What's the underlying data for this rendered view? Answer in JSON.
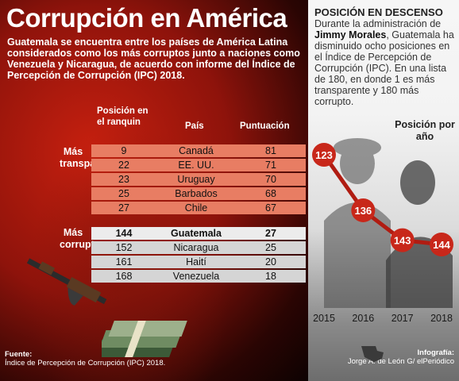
{
  "header": {
    "title": "Corrupción en América",
    "intro": "Guatemala se encuentra entre los países de América Latina considerados como los más corruptos junto a naciones como Venezuela y Nicaragua, de acuerdo con informe del Índice de Percepción de Corrupción (IPC) 2018."
  },
  "table": {
    "col_pos": "Posición en el ranquin",
    "col_pais": "País",
    "col_punt": "Puntuación",
    "group_top": "Más transparentes",
    "group_bottom": "Más corruptos",
    "top_rows": [
      {
        "pos": "9",
        "pais": "Canadá",
        "punt": "81"
      },
      {
        "pos": "22",
        "pais": "EE. UU.",
        "punt": "71"
      },
      {
        "pos": "23",
        "pais": "Uruguay",
        "punt": "70"
      },
      {
        "pos": "25",
        "pais": "Barbados",
        "punt": "68"
      },
      {
        "pos": "27",
        "pais": "Chile",
        "punt": "67"
      }
    ],
    "bottom_rows": [
      {
        "pos": "144",
        "pais": "Guatemala",
        "punt": "27"
      },
      {
        "pos": "152",
        "pais": "Nicaragua",
        "punt": "25"
      },
      {
        "pos": "161",
        "pais": "Haití",
        "punt": "20"
      },
      {
        "pos": "168",
        "pais": "Venezuela",
        "punt": "18"
      }
    ]
  },
  "source": {
    "label": "Fuente:",
    "text": "Índice de Percepción de Corrupción (IPC) 2018."
  },
  "side": {
    "heading": "POSICIÓN EN DESCENSO",
    "text_pre": "Durante la administración de ",
    "text_name": "Jimmy Morales",
    "text_post": ", Guatemala ha disminuido ocho posiciones en el Índice de Percepción de Corrupción (IPC). En una lista de 180, en donde 1 es más transparente y 180 más corrupto.",
    "chart_label": "Posición por año"
  },
  "credit": {
    "label": "Infografía:",
    "text": "Jorge A. de León G/ elPeriódico"
  },
  "colors": {
    "accent_red": "#c8271a",
    "line_red": "#b01c12",
    "row_top": "#e87d63",
    "row_bottom": "#d5d5d5"
  },
  "chart_data": {
    "type": "line",
    "title": "Posición por año",
    "categories": [
      "2015",
      "2016",
      "2017",
      "2018"
    ],
    "values": [
      123,
      136,
      143,
      144
    ]
  }
}
